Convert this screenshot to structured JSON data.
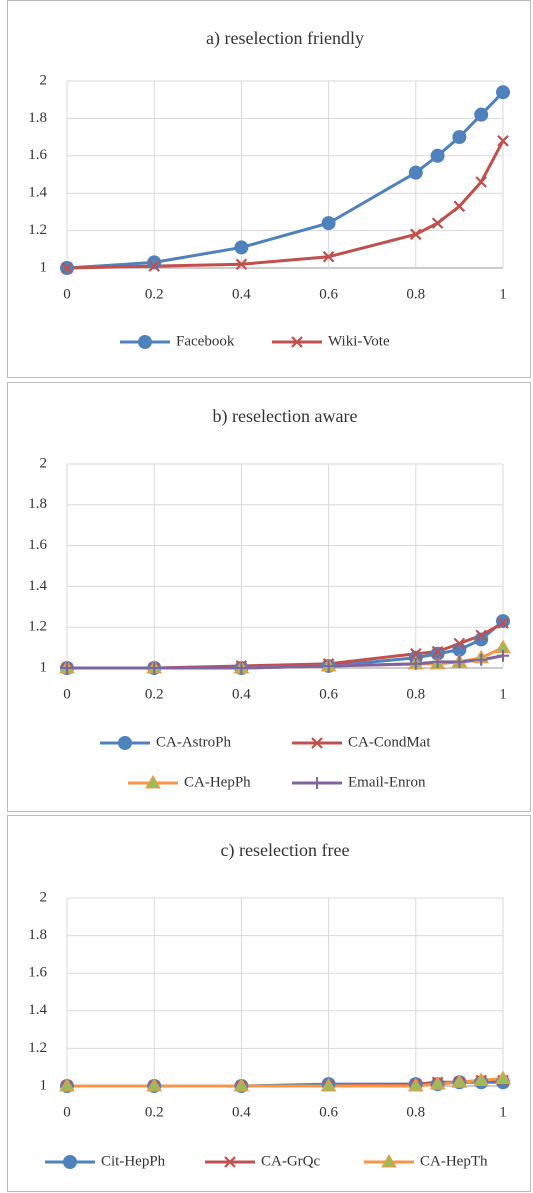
{
  "chart_data": [
    {
      "type": "line",
      "title": "a) reselection friendly",
      "x": [
        0,
        0.2,
        0.4,
        0.6,
        0.8,
        0.85,
        0.9,
        0.95,
        1
      ],
      "xlim": [
        0,
        1
      ],
      "xticks": [
        0,
        0.2,
        0.4,
        0.6,
        0.8,
        1
      ],
      "ylim": [
        1,
        2
      ],
      "yticks": [
        1,
        1.2,
        1.4,
        1.6,
        1.8,
        2
      ],
      "grid": true,
      "series": [
        {
          "name": "Facebook",
          "color": "#4f81bd",
          "marker": "circle",
          "values": [
            1.0,
            1.03,
            1.11,
            1.24,
            1.51,
            1.6,
            1.7,
            1.82,
            1.94
          ]
        },
        {
          "name": "Wiki-Vote",
          "color": "#c0504d",
          "marker": "x",
          "values": [
            1.0,
            1.01,
            1.02,
            1.06,
            1.18,
            1.24,
            1.33,
            1.46,
            1.68
          ]
        }
      ]
    },
    {
      "type": "line",
      "title": "b) reselection aware",
      "x": [
        0,
        0.2,
        0.4,
        0.6,
        0.8,
        0.85,
        0.9,
        0.95,
        1
      ],
      "xlim": [
        0,
        1
      ],
      "xticks": [
        0,
        0.2,
        0.4,
        0.6,
        0.8,
        1
      ],
      "ylim": [
        1,
        2
      ],
      "yticks": [
        1,
        1.2,
        1.4,
        1.6,
        1.8,
        2
      ],
      "grid": true,
      "series": [
        {
          "name": "CA-AstroPh",
          "color": "#4f81bd",
          "marker": "circle",
          "values": [
            1.0,
            1.0,
            1.0,
            1.01,
            1.05,
            1.07,
            1.09,
            1.14,
            1.23
          ]
        },
        {
          "name": "CA-CondMat",
          "color": "#c0504d",
          "marker": "x",
          "values": [
            1.0,
            1.0,
            1.01,
            1.02,
            1.07,
            1.08,
            1.12,
            1.16,
            1.22
          ]
        },
        {
          "name": "CA-HepPh",
          "color": "#f79646",
          "marker": "triangle",
          "values": [
            1.0,
            1.0,
            1.0,
            1.01,
            1.02,
            1.02,
            1.03,
            1.05,
            1.1
          ]
        },
        {
          "name": "Email-Enron",
          "color": "#8064a2",
          "marker": "plus",
          "values": [
            1.0,
            1.0,
            1.0,
            1.01,
            1.02,
            1.03,
            1.03,
            1.04,
            1.06
          ]
        }
      ]
    },
    {
      "type": "line",
      "title": "c) reselection free",
      "x": [
        0,
        0.2,
        0.4,
        0.6,
        0.8,
        0.85,
        0.9,
        0.95,
        1
      ],
      "xlim": [
        0,
        1
      ],
      "xticks": [
        0,
        0.2,
        0.4,
        0.6,
        0.8,
        1
      ],
      "ylim": [
        1,
        2
      ],
      "yticks": [
        1,
        1.2,
        1.4,
        1.6,
        1.8,
        2
      ],
      "grid": true,
      "series": [
        {
          "name": "Cit-HepPh",
          "color": "#4f81bd",
          "marker": "circle",
          "values": [
            1.0,
            1.0,
            1.0,
            1.01,
            1.01,
            1.01,
            1.02,
            1.02,
            1.02
          ]
        },
        {
          "name": "CA-GrQc",
          "color": "#c0504d",
          "marker": "x",
          "values": [
            1.0,
            1.0,
            1.0,
            1.0,
            1.01,
            1.02,
            1.02,
            1.03,
            1.03
          ]
        },
        {
          "name": "CA-HepTh",
          "color": "#f79646",
          "marker": "triangle",
          "values": [
            1.0,
            1.0,
            1.0,
            1.0,
            1.0,
            1.01,
            1.02,
            1.03,
            1.04
          ]
        }
      ]
    }
  ]
}
